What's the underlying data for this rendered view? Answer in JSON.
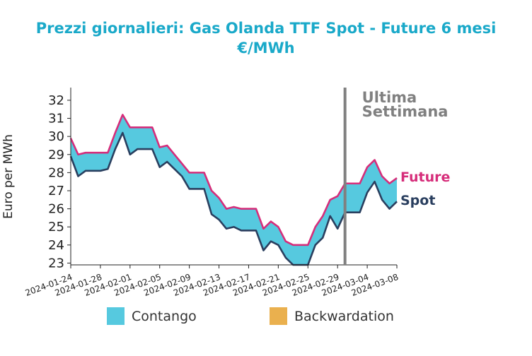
{
  "title_lines": [
    "Prezzi giornalieri: Gas Olanda TTF Spot - Future 6 mesi",
    "€/MWh"
  ],
  "colors": {
    "title": "#1aa9c9",
    "future": "#d62d7a",
    "spot": "#2a3f5f",
    "contango": "#56c9df",
    "backwardation": "#eab04e",
    "marker": "#808080"
  },
  "chart_data": {
    "type": "area",
    "title": "Prezzi giornalieri: Gas Olanda TTF Spot - Future 6 mesi €/MWh",
    "ylabel": "Euro per MWh",
    "xlabel": "",
    "ylim": [
      22.9,
      32.7
    ],
    "xlim": [
      "2024-01-24",
      "2024-03-08"
    ],
    "yticks": [
      23,
      24,
      25,
      26,
      27,
      28,
      29,
      30,
      31,
      32
    ],
    "xticks": [
      "2024-01-24",
      "2024-01-28",
      "2024-02-01",
      "2024-02-05",
      "2024-02-09",
      "2024-02-13",
      "2024-02-17",
      "2024-02-21",
      "2024-02-25",
      "2024-02-29",
      "2024-03-04",
      "2024-03-08"
    ],
    "grid": false,
    "legend": [
      "Contango",
      "Backwardation"
    ],
    "legend_position": "bottom",
    "vertical_marker": {
      "x": "2024-03-01",
      "label_lines": [
        "Ultima",
        "Settimana"
      ]
    },
    "series_labels": {
      "future": "Future",
      "spot": "Spot"
    },
    "series": [
      {
        "name": "Future",
        "points": [
          [
            "2024-01-24",
            29.9
          ],
          [
            "2024-01-25",
            29.0
          ],
          [
            "2024-01-26",
            29.1
          ],
          [
            "2024-01-27",
            29.1
          ],
          [
            "2024-01-28",
            29.1
          ],
          [
            "2024-01-29",
            29.1
          ],
          [
            "2024-01-30",
            30.2
          ],
          [
            "2024-01-31",
            31.2
          ],
          [
            "2024-02-01",
            30.5
          ],
          [
            "2024-02-02",
            30.5
          ],
          [
            "2024-02-03",
            30.5
          ],
          [
            "2024-02-04",
            30.5
          ],
          [
            "2024-02-05",
            29.4
          ],
          [
            "2024-02-06",
            29.5
          ],
          [
            "2024-02-07",
            29.0
          ],
          [
            "2024-02-08",
            28.5
          ],
          [
            "2024-02-09",
            28.0
          ],
          [
            "2024-02-10",
            28.0
          ],
          [
            "2024-02-11",
            28.0
          ],
          [
            "2024-02-12",
            27.0
          ],
          [
            "2024-02-13",
            26.6
          ],
          [
            "2024-02-14",
            26.0
          ],
          [
            "2024-02-15",
            26.1
          ],
          [
            "2024-02-16",
            26.0
          ],
          [
            "2024-02-17",
            26.0
          ],
          [
            "2024-02-18",
            26.0
          ],
          [
            "2024-02-19",
            24.9
          ],
          [
            "2024-02-20",
            25.3
          ],
          [
            "2024-02-21",
            25.0
          ],
          [
            "2024-02-22",
            24.2
          ],
          [
            "2024-02-23",
            24.0
          ],
          [
            "2024-02-24",
            24.0
          ],
          [
            "2024-02-25",
            24.0
          ],
          [
            "2024-02-26",
            25.0
          ],
          [
            "2024-02-27",
            25.6
          ],
          [
            "2024-02-28",
            26.5
          ],
          [
            "2024-02-29",
            26.7
          ],
          [
            "2024-03-01",
            27.4
          ],
          [
            "2024-03-02",
            27.4
          ],
          [
            "2024-03-03",
            27.4
          ],
          [
            "2024-03-04",
            28.3
          ],
          [
            "2024-03-05",
            28.7
          ],
          [
            "2024-03-06",
            27.8
          ],
          [
            "2024-03-07",
            27.4
          ],
          [
            "2024-03-08",
            27.7
          ]
        ]
      },
      {
        "name": "Spot",
        "points": [
          [
            "2024-01-24",
            28.9
          ],
          [
            "2024-01-25",
            27.8
          ],
          [
            "2024-01-26",
            28.1
          ],
          [
            "2024-01-27",
            28.1
          ],
          [
            "2024-01-28",
            28.1
          ],
          [
            "2024-01-29",
            28.2
          ],
          [
            "2024-01-30",
            29.3
          ],
          [
            "2024-01-31",
            30.2
          ],
          [
            "2024-02-01",
            29.0
          ],
          [
            "2024-02-02",
            29.3
          ],
          [
            "2024-02-03",
            29.3
          ],
          [
            "2024-02-04",
            29.3
          ],
          [
            "2024-02-05",
            28.3
          ],
          [
            "2024-02-06",
            28.6
          ],
          [
            "2024-02-07",
            28.2
          ],
          [
            "2024-02-08",
            27.8
          ],
          [
            "2024-02-09",
            27.1
          ],
          [
            "2024-02-10",
            27.1
          ],
          [
            "2024-02-11",
            27.1
          ],
          [
            "2024-02-12",
            25.7
          ],
          [
            "2024-02-13",
            25.4
          ],
          [
            "2024-02-14",
            24.9
          ],
          [
            "2024-02-15",
            25.0
          ],
          [
            "2024-02-16",
            24.8
          ],
          [
            "2024-02-17",
            24.8
          ],
          [
            "2024-02-18",
            24.8
          ],
          [
            "2024-02-19",
            23.7
          ],
          [
            "2024-02-20",
            24.2
          ],
          [
            "2024-02-21",
            24.0
          ],
          [
            "2024-02-22",
            23.3
          ],
          [
            "2024-02-23",
            22.9
          ],
          [
            "2024-02-24",
            22.9
          ],
          [
            "2024-02-25",
            22.9
          ],
          [
            "2024-02-26",
            24.0
          ],
          [
            "2024-02-27",
            24.4
          ],
          [
            "2024-02-28",
            25.6
          ],
          [
            "2024-02-29",
            24.9
          ],
          [
            "2024-03-01",
            25.8
          ],
          [
            "2024-03-02",
            25.8
          ],
          [
            "2024-03-03",
            25.8
          ],
          [
            "2024-03-04",
            26.9
          ],
          [
            "2024-03-05",
            27.5
          ],
          [
            "2024-03-06",
            26.5
          ],
          [
            "2024-03-07",
            26.0
          ],
          [
            "2024-03-08",
            26.4
          ]
        ]
      }
    ]
  }
}
